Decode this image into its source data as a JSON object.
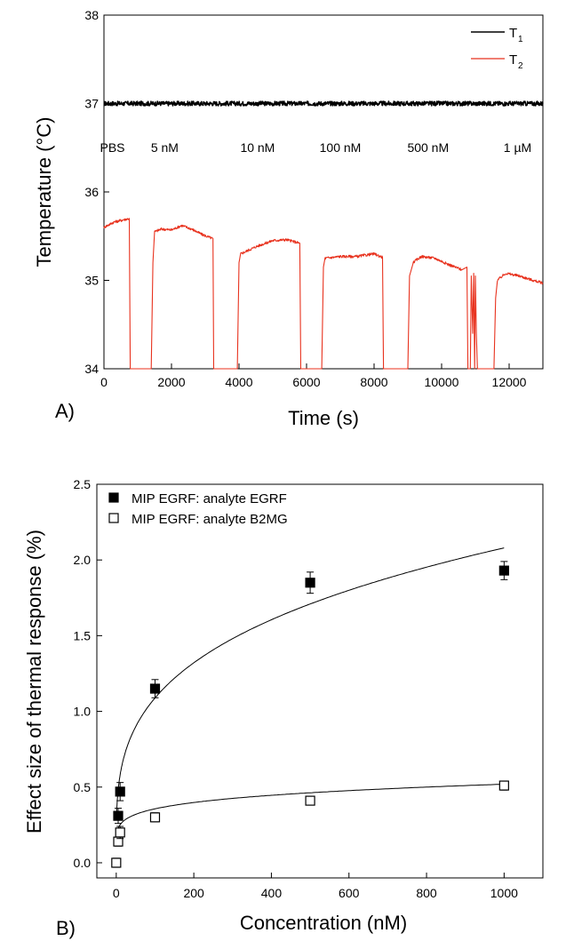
{
  "chart_data": [
    {
      "panel_label": "A)",
      "type": "line",
      "xlabel": "Time (s)",
      "ylabel": "Temperature (°C)",
      "xlim": [
        0,
        13000
      ],
      "ylim": [
        34,
        38
      ],
      "xticks": [
        0,
        2000,
        4000,
        6000,
        8000,
        10000,
        12000
      ],
      "yticks": [
        34,
        35,
        36,
        37,
        38
      ],
      "legend": {
        "position": "top-right",
        "entries": [
          {
            "name": "T",
            "sub": "1",
            "color": "#000000"
          },
          {
            "name": "T",
            "sub": "2",
            "color": "#e8321e"
          }
        ]
      },
      "annotations": [
        {
          "text": "PBS",
          "x": 250
        },
        {
          "text": "5 nM",
          "x": 1800
        },
        {
          "text": "10 nM",
          "x": 4550
        },
        {
          "text": "100 nM",
          "x": 7000
        },
        {
          "text": "500 nM",
          "x": 9600
        },
        {
          "text": "1 µM",
          "x": 12250
        }
      ],
      "annotation_y": 36.45,
      "series": [
        {
          "legend_index": 0,
          "color": "#000000",
          "points": [
            [
              0,
              37.0
            ],
            [
              13000,
              37.0
            ]
          ],
          "noise": 0.025
        },
        {
          "legend_index": 1,
          "color": "#e8321e",
          "noise": 0.015,
          "points": [
            [
              0,
              35.6
            ],
            [
              300,
              35.66
            ],
            [
              750,
              35.7
            ],
            [
              780,
              34.0
            ],
            [
              1400,
              34.0
            ],
            [
              1450,
              35.2
            ],
            [
              1500,
              35.55
            ],
            [
              1700,
              35.58
            ],
            [
              2000,
              35.57
            ],
            [
              2300,
              35.62
            ],
            [
              2600,
              35.58
            ],
            [
              2900,
              35.52
            ],
            [
              3230,
              35.47
            ],
            [
              3250,
              34.0
            ],
            [
              3950,
              34.0
            ],
            [
              4000,
              35.2
            ],
            [
              4050,
              35.3
            ],
            [
              4500,
              35.38
            ],
            [
              5000,
              35.45
            ],
            [
              5400,
              35.46
            ],
            [
              5800,
              35.42
            ],
            [
              5830,
              34.0
            ],
            [
              6450,
              34.0
            ],
            [
              6500,
              35.15
            ],
            [
              6550,
              35.25
            ],
            [
              7000,
              35.27
            ],
            [
              7500,
              35.27
            ],
            [
              8000,
              35.3
            ],
            [
              8250,
              35.26
            ],
            [
              8280,
              34.0
            ],
            [
              9000,
              34.0
            ],
            [
              9050,
              35.05
            ],
            [
              9150,
              35.2
            ],
            [
              9400,
              35.27
            ],
            [
              9800,
              35.25
            ],
            [
              10200,
              35.18
            ],
            [
              10600,
              35.12
            ],
            [
              10750,
              35.15
            ],
            [
              10780,
              34.0
            ],
            [
              10850,
              34.0
            ],
            [
              10880,
              35.05
            ],
            [
              10920,
              34.4
            ],
            [
              10950,
              35.08
            ],
            [
              10980,
              34.0
            ],
            [
              11000,
              35.05
            ],
            [
              11030,
              34.4
            ],
            [
              11060,
              34.0
            ],
            [
              11550,
              34.0
            ],
            [
              11600,
              34.8
            ],
            [
              11650,
              35.0
            ],
            [
              11900,
              35.08
            ],
            [
              12300,
              35.05
            ],
            [
              12700,
              35.0
            ],
            [
              13000,
              34.97
            ]
          ]
        }
      ]
    },
    {
      "panel_label": "B)",
      "type": "scatter",
      "xlabel": "Concentration (nM)",
      "ylabel": "Effect size of thermal response (%)",
      "xlim": [
        -50,
        1100
      ],
      "ylim": [
        -0.1,
        2.5
      ],
      "xticks": [
        0,
        200,
        400,
        600,
        800,
        1000
      ],
      "yticks": [
        0.0,
        0.5,
        1.0,
        1.5,
        2.0,
        2.5
      ],
      "legend": {
        "position": "top-left"
      },
      "series": [
        {
          "name": "MIP EGRF: analyte EGRF",
          "marker": "filled-square",
          "x": [
            5,
            10,
            100,
            500,
            1000
          ],
          "y": [
            0.31,
            0.47,
            1.15,
            1.85,
            1.93
          ],
          "error": [
            0.05,
            0.06,
            0.06,
            0.07,
            0.06
          ],
          "fit": {
            "a": 0.045,
            "b": 1.1,
            "c": 0.29
          }
        },
        {
          "name": "MIP EGRF: analyte B2MG",
          "marker": "open-square",
          "x": [
            0,
            5,
            10,
            100,
            500,
            1000
          ],
          "y": [
            0.0,
            0.14,
            0.2,
            0.3,
            0.41,
            0.51
          ],
          "error": [
            0.03,
            0.03,
            0.04,
            0.03,
            0.02,
            0.03
          ],
          "fit": {
            "a": 0.06,
            "b": 0.3,
            "c": 0.19
          }
        }
      ]
    }
  ]
}
